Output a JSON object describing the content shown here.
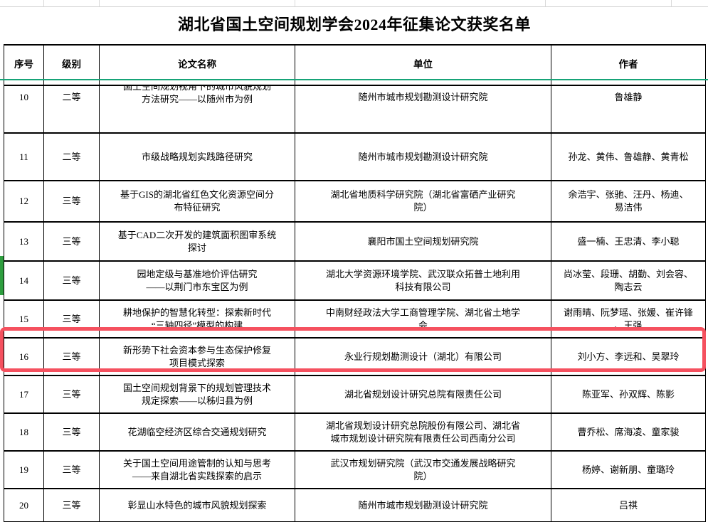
{
  "title": "湖北省国土空间规划学会2024年征集论文获奖名单",
  "colors": {
    "highlight_red": "#f5515f",
    "selection_line_green": "#16a377",
    "row_marker_green": "#2e9e3f",
    "grid_black": "#000000",
    "faint_grid_gray": "#d9d9d9"
  },
  "table": {
    "headers": [
      "序号",
      "级别",
      "论文名称",
      "单位",
      "作者"
    ],
    "rows": [
      {
        "no": "10",
        "level": "二等",
        "title": "国土空间规划视角下的城市风貌规划\n方法研究——以随州市为例",
        "unit": "随州市城市规划勘测设计研究院",
        "authors": "鲁雄静"
      },
      {
        "no": "11",
        "level": "二等",
        "title": "市级战略规划实践路径研究",
        "unit": "随州市城市规划勘测设计研究院",
        "authors": "孙龙、黄伟、鲁雄静、黄青松"
      },
      {
        "no": "12",
        "level": "三等",
        "title": "基于GIS的湖北省红色文化资源空间分\n布特征研究",
        "unit": "湖北省地质科学研究院（湖北省富硒产业研究\n院）",
        "authors": "余浩宇、张驰、汪丹、杨迪、\n易洁伟"
      },
      {
        "no": "13",
        "level": "三等",
        "title": "基于CAD二次开发的建筑面积图审系统\n探讨",
        "unit": "襄阳市国土空间规划研究院",
        "authors": "盛一楠、王忠清、李小聪"
      },
      {
        "no": "14",
        "level": "三等",
        "title": "园地定级与基准地价评估研究\n——以荆门市东宝区为例",
        "unit": "湖北大学资源环境学院、武汉联众拓普土地利用\n科技有限公司",
        "authors": "尚冰莹、段珊、胡勤、刘会容、\n陶志云"
      },
      {
        "no": "15",
        "level": "三等",
        "title": "耕地保护的智慧化转型：探索新时代\n“三轴四径”模型的构建",
        "unit": "中南财经政法大学工商管理学院、湖北省土地学\n会",
        "authors": "谢雨晴、阮梦瑶、张媛、崔许锋\n、王强"
      },
      {
        "no": "16",
        "level": "三等",
        "title": "新形势下社会资本参与生态保护修复\n项目模式探索",
        "unit": "永业行规划勘测设计（湖北）有限公司",
        "authors": "刘小方、李远和、吴翠玲"
      },
      {
        "no": "17",
        "level": "三等",
        "title": "国土空间规划背景下的规划管理技术\n规定探索——以秭归县为例",
        "unit": "湖北省规划设计研究总院有限责任公司",
        "authors": "陈亚军、孙双辉、陈影"
      },
      {
        "no": "18",
        "level": "三等",
        "title": "花湖临空经济区综合交通规划研究",
        "unit": "湖北省规划设计研究总院股份有限公司、湖北省\n城市规划设计研究院有限责任公司西南分公司",
        "authors": "曹乔松、席海凌、童家骏"
      },
      {
        "no": "19",
        "level": "三等",
        "title": "关于国土空间用途管制的认知与思考\n——来自湖北省实践探索的启示",
        "unit": "武汉市规划研究院（武汉市交通发展战略研究\n院）",
        "authors": "杨婷、谢新朋、童璐玲"
      },
      {
        "no": "20",
        "level": "三等",
        "title": "彰显山水特色的城市风貌规划探索",
        "unit": "随州市城市规划勘测设计研究院",
        "authors": "吕祺"
      }
    ]
  },
  "annotations": {
    "red_highlight_row_no": "16",
    "green_selection_line_above_row_no": "10",
    "green_marker_row_no": "14"
  }
}
